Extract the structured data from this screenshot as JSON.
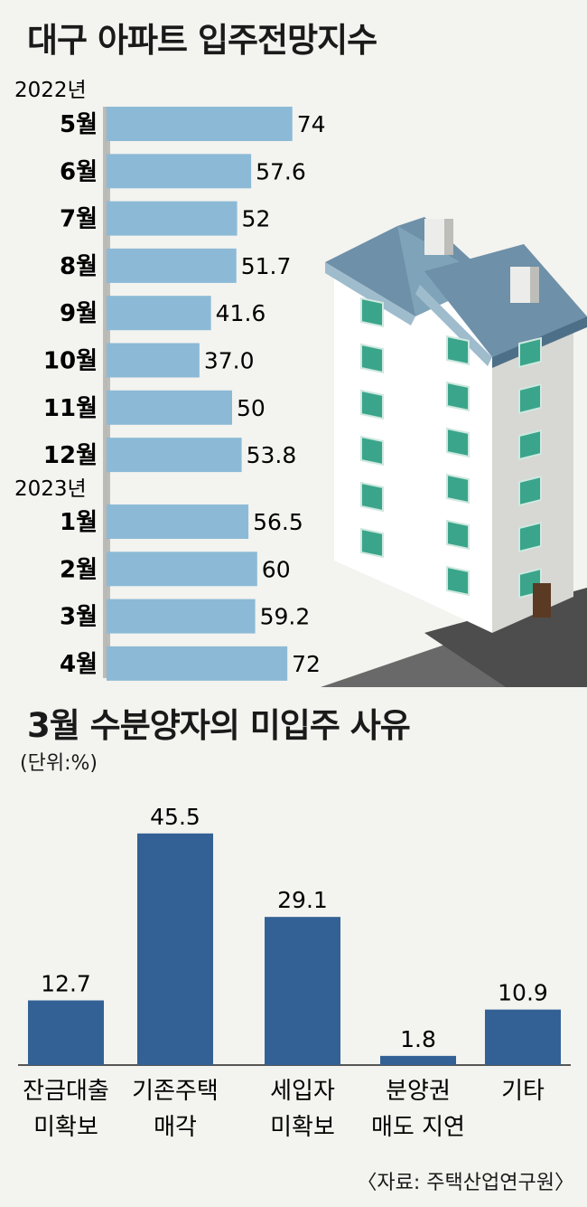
{
  "title1": "대구 아파트 입주전망지수",
  "title2": "3월 수분양자의 미입주 사유",
  "unit": "(단위:%)",
  "source": "〈자료: 주택산업연구원〉",
  "colors": {
    "hbar": "#8cbad6",
    "vbar": "#336195",
    "bg": "#f3f3ef"
  },
  "chart_data": [
    {
      "type": "bar",
      "orientation": "horizontal",
      "title": "대구 아파트 입주전망지수",
      "groups": [
        {
          "year": "2022년",
          "categories": [
            "5월",
            "6월",
            "7월",
            "8월",
            "9월",
            "10월",
            "11월",
            "12월"
          ],
          "values": [
            74,
            57.6,
            52,
            51.7,
            41.6,
            37.0,
            50,
            53.8
          ],
          "value_labels": [
            "74",
            "57.6",
            "52",
            "51.7",
            "41.6",
            "37.0",
            "50",
            "53.8"
          ]
        },
        {
          "year": "2023년",
          "categories": [
            "1월",
            "2월",
            "3월",
            "4월"
          ],
          "values": [
            56.5,
            60,
            59.2,
            72
          ],
          "value_labels": [
            "56.5",
            "60",
            "59.2",
            "72"
          ]
        }
      ]
    },
    {
      "type": "bar",
      "orientation": "vertical",
      "title": "3월 수분양자의 미입주 사유",
      "unit": "(단위:%)",
      "categories": [
        [
          "잔금대출",
          "미확보"
        ],
        [
          "기존주택",
          "매각"
        ],
        [
          "세입자",
          "미확보"
        ],
        [
          "분양권",
          "매도 지연"
        ],
        [
          "기타"
        ]
      ],
      "values": [
        12.7,
        45.5,
        29.1,
        1.8,
        10.9
      ],
      "value_labels": [
        "12.7",
        "45.5",
        "29.1",
        "1.8",
        "10.9"
      ]
    }
  ]
}
